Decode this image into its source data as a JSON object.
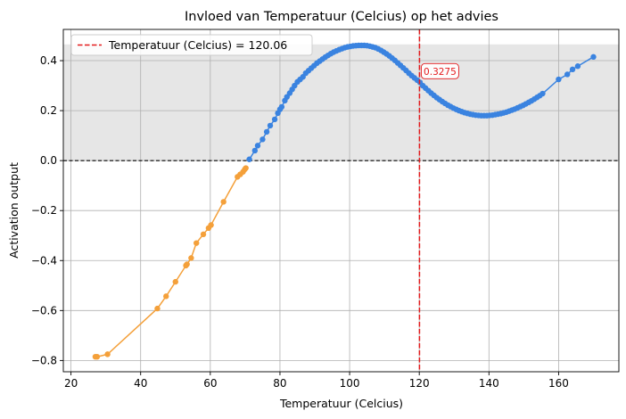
{
  "chart_data": {
    "type": "line",
    "title": "Invloed van Temperatuur (Celcius) op het advies",
    "xlabel": "Temperatuur (Celcius)",
    "ylabel": "Activation output",
    "xlim": [
      17.8,
      177.3
    ],
    "ylim": [
      -0.845,
      0.525
    ],
    "xticks": [
      20,
      40,
      60,
      80,
      100,
      120,
      140,
      160
    ],
    "yticks": [
      -0.8,
      -0.6,
      -0.4,
      -0.2,
      0.0,
      0.2,
      0.4
    ],
    "ytick_labels": [
      "−0.8",
      "−0.6",
      "−0.4",
      "−0.2",
      "0.0",
      "0.2",
      "0.4"
    ],
    "grid": true,
    "shaded_band": {
      "y0": 0.0,
      "y1": 0.465,
      "color": "#e6e6e6"
    },
    "zero_line": {
      "y": 0.0,
      "style": "dashed",
      "color": "#000000"
    },
    "vline": {
      "x": 120.06,
      "color": "#e41a1c",
      "label": "Temperatuur (Celcius) = 120.06"
    },
    "annotation": {
      "x": 120.06,
      "y": 0.3275,
      "text": "0.3275",
      "color": "#e41a1c"
    },
    "legend": {
      "position": "top-left",
      "entry": "Temperatuur (Celcius) = 120.06"
    },
    "series": [
      {
        "color": "#f4a03a",
        "x": [
          27.0,
          27.5,
          30.5,
          44.8,
          47.3,
          50.0,
          53.0,
          53.3,
          54.5,
          56.0,
          58.0,
          59.5,
          60.2,
          63.8,
          67.8,
          68.6,
          69.4,
          69.9,
          70.2
        ],
        "y": [
          -0.785,
          -0.785,
          -0.775,
          -0.592,
          -0.543,
          -0.485,
          -0.42,
          -0.415,
          -0.39,
          -0.33,
          -0.295,
          -0.27,
          -0.258,
          -0.165,
          -0.065,
          -0.055,
          -0.045,
          -0.035,
          -0.03
        ]
      },
      {
        "color": "#3a83e0",
        "x": [
          71.2,
          72.8,
          73.6,
          75.0,
          76.2,
          77.2,
          78.5,
          79.4,
          80.0,
          80.5,
          81.4,
          82.0,
          82.8,
          83.5,
          84.2,
          85.0,
          85.8,
          86.6,
          87.4,
          88.2,
          89.0,
          89.8,
          90.6,
          91.4,
          92.2,
          93.0,
          93.8,
          94.6,
          95.4,
          96.2,
          97.0,
          97.8,
          98.6,
          99.4,
          100.2,
          101.0,
          101.8,
          102.6,
          103.4,
          104.2,
          105.0,
          105.8,
          106.6,
          107.4,
          108.2,
          109.0,
          109.8,
          110.6,
          111.4,
          112.2,
          113.0,
          113.8,
          114.6,
          115.4,
          116.2,
          117.0,
          117.8,
          118.6,
          119.4,
          120.2,
          121.0,
          121.8,
          122.6,
          123.4,
          124.2,
          125.0,
          125.8,
          126.6,
          127.4,
          128.2,
          129.0,
          129.8,
          130.6,
          131.4,
          132.2,
          133.0,
          133.8,
          134.6,
          135.4,
          136.2,
          137.0,
          137.8,
          138.6,
          139.4,
          140.2,
          141.0,
          141.8,
          142.6,
          143.4,
          144.2,
          145.0,
          145.8,
          146.6,
          147.4,
          148.2,
          149.0,
          149.8,
          150.6,
          151.4,
          152.2,
          153.0,
          153.8,
          154.6,
          155.4,
          160.0,
          162.5,
          164.0,
          165.5,
          170.0
        ],
        "y": [
          0.005,
          0.04,
          0.06,
          0.085,
          0.115,
          0.14,
          0.165,
          0.19,
          0.205,
          0.215,
          0.24,
          0.255,
          0.27,
          0.285,
          0.3,
          0.315,
          0.325,
          0.335,
          0.35,
          0.36,
          0.37,
          0.38,
          0.39,
          0.398,
          0.406,
          0.414,
          0.421,
          0.428,
          0.434,
          0.439,
          0.444,
          0.448,
          0.452,
          0.455,
          0.457,
          0.459,
          0.46,
          0.461,
          0.461,
          0.461,
          0.46,
          0.458,
          0.455,
          0.452,
          0.447,
          0.441,
          0.434,
          0.427,
          0.419,
          0.41,
          0.401,
          0.391,
          0.381,
          0.371,
          0.361,
          0.35,
          0.34,
          0.331,
          0.322,
          0.313,
          0.3,
          0.29,
          0.28,
          0.27,
          0.261,
          0.252,
          0.244,
          0.236,
          0.229,
          0.222,
          0.216,
          0.21,
          0.205,
          0.2,
          0.196,
          0.192,
          0.189,
          0.186,
          0.184,
          0.182,
          0.181,
          0.18,
          0.18,
          0.18,
          0.181,
          0.182,
          0.184,
          0.186,
          0.188,
          0.191,
          0.194,
          0.198,
          0.202,
          0.206,
          0.211,
          0.216,
          0.221,
          0.227,
          0.233,
          0.239,
          0.246,
          0.253,
          0.26,
          0.268,
          0.325,
          0.345,
          0.365,
          0.378,
          0.415
        ]
      }
    ]
  }
}
